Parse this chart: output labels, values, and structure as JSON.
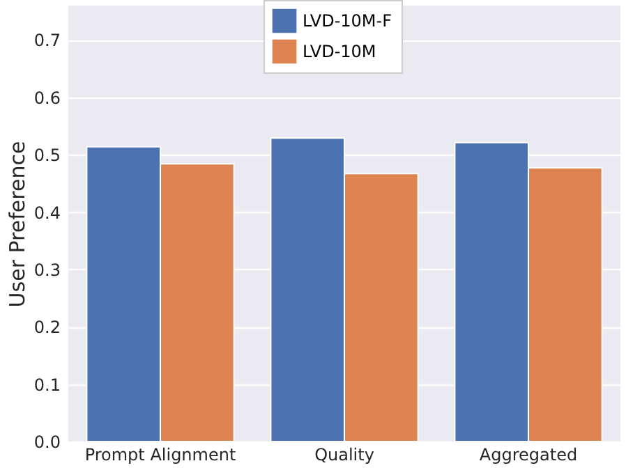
{
  "chart_data": {
    "type": "bar",
    "ylabel": "User Preference",
    "categories": [
      "Prompt Alignment",
      "Quality",
      "Aggregated"
    ],
    "series": [
      {
        "name": "LVD-10M-F",
        "color": "#4c72b0",
        "values": [
          0.514,
          0.529,
          0.521
        ]
      },
      {
        "name": "LVD-10M",
        "color": "#dd8452",
        "values": [
          0.484,
          0.467,
          0.477
        ]
      }
    ],
    "ylim": [
      0,
      0.76
    ],
    "yticks": [
      {
        "value": 0,
        "label": "0.0"
      },
      {
        "value": 0.1,
        "label": "0.1"
      },
      {
        "value": 0.2,
        "label": "0.2"
      },
      {
        "value": 0.3,
        "label": "0.3"
      },
      {
        "value": 0.4,
        "label": "0.4"
      },
      {
        "value": 0.5,
        "label": "0.5"
      },
      {
        "value": 0.6,
        "label": "0.6"
      },
      {
        "value": 0.7,
        "label": "0.7"
      }
    ],
    "grid": "y",
    "legend": "top"
  }
}
